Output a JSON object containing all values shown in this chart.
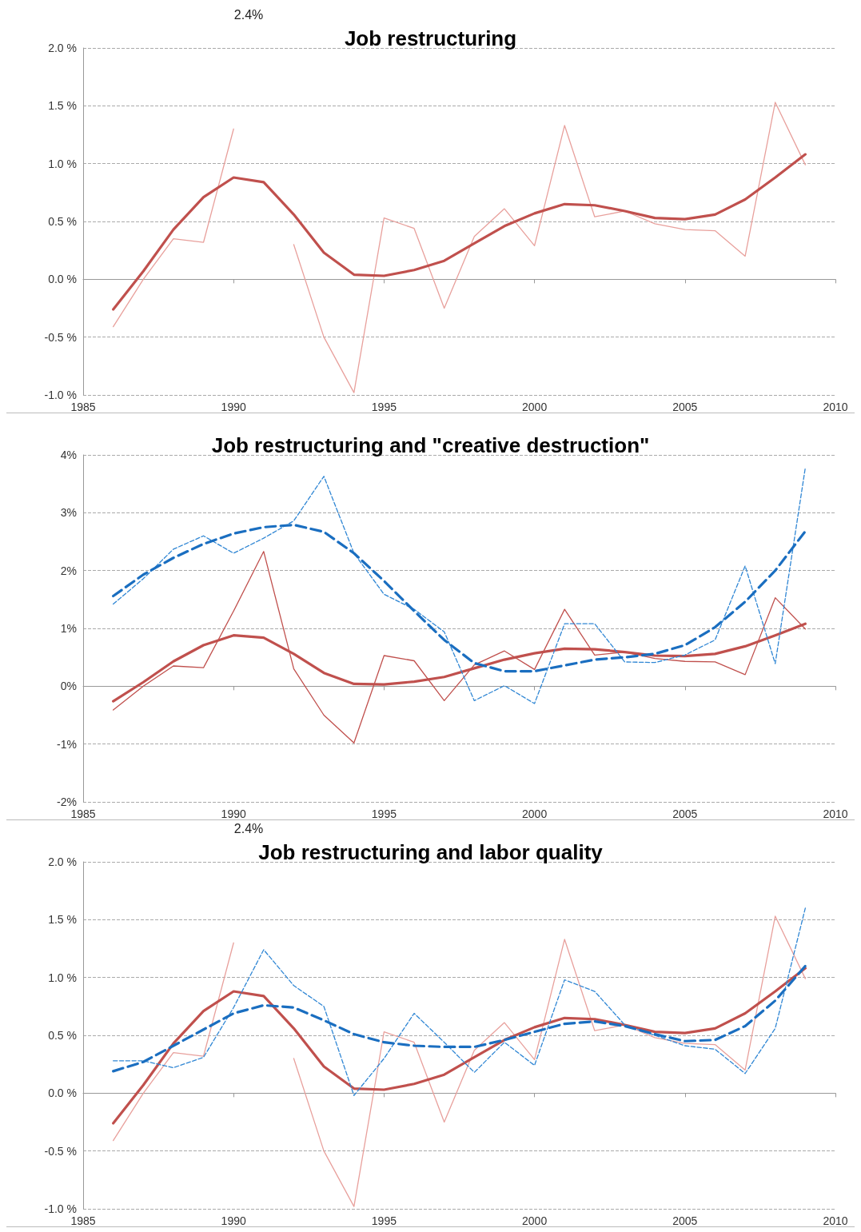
{
  "chart_data": [
    {
      "type": "line",
      "title": "Job restructuring",
      "x": [
        1986,
        1987,
        1988,
        1989,
        1990,
        1991,
        1992,
        1993,
        1994,
        1995,
        1996,
        1997,
        1998,
        1999,
        2000,
        2001,
        2002,
        2003,
        2004,
        2005,
        2006,
        2007,
        2008,
        2009
      ],
      "xlim": [
        1985,
        2010
      ],
      "xticks": [
        1985,
        1990,
        1995,
        2000,
        2005,
        2010
      ],
      "ylim": [
        -1,
        2
      ],
      "yticks": [
        {
          "value": -1,
          "label": "-1.0 %"
        },
        {
          "value": -0.5,
          "label": "-0.5 %"
        },
        {
          "value": 0,
          "label": "0.0 %"
        },
        {
          "value": 0.5,
          "label": "0.5 %"
        },
        {
          "value": 1,
          "label": "1.0 %"
        },
        {
          "value": 1.5,
          "label": "1.5 %"
        },
        {
          "value": 2,
          "label": "2.0 %"
        }
      ],
      "grid": "y",
      "marker": "none",
      "annotations": [
        "2.4%"
      ],
      "series": [
        {
          "color": "#e8a09c",
          "line_style": "solid",
          "values": [
            -0.41,
            0.0,
            0.35,
            0.32,
            1.3,
            null,
            0.3,
            -0.5,
            -0.98,
            0.53,
            0.44,
            -0.25,
            0.37,
            0.61,
            0.29,
            1.33,
            0.54,
            0.59,
            0.48,
            0.43,
            0.42,
            0.2,
            1.53,
            0.99
          ]
        },
        {
          "color": "#c0504d",
          "line_style": "solid",
          "values": [
            -0.26,
            0.07,
            0.43,
            0.71,
            0.88,
            0.84,
            0.56,
            0.23,
            0.04,
            0.03,
            0.08,
            0.16,
            0.31,
            0.46,
            0.57,
            0.65,
            0.64,
            0.59,
            0.53,
            0.52,
            0.56,
            0.69,
            0.88,
            1.08
          ]
        }
      ]
    },
    {
      "type": "line",
      "title": "Job restructuring and \"creative destruction\"",
      "x": [
        1986,
        1987,
        1988,
        1989,
        1990,
        1991,
        1992,
        1993,
        1994,
        1995,
        1996,
        1997,
        1998,
        1999,
        2000,
        2001,
        2002,
        2003,
        2004,
        2005,
        2006,
        2007,
        2008,
        2009
      ],
      "xlim": [
        1985,
        2010
      ],
      "xticks": [
        1985,
        1990,
        1995,
        2000,
        2005,
        2010
      ],
      "ylim": [
        -2,
        4
      ],
      "yticks": [
        {
          "value": -2,
          "label": "-2%"
        },
        {
          "value": -1,
          "label": "-1%"
        },
        {
          "value": 0,
          "label": "0%"
        },
        {
          "value": 1,
          "label": "1%"
        },
        {
          "value": 2,
          "label": "2%"
        },
        {
          "value": 3,
          "label": "3%"
        },
        {
          "value": 4,
          "label": "4%"
        }
      ],
      "grid": "y",
      "marker": "none",
      "series": [
        {
          "color": "#c0504d",
          "line_style": "solid",
          "values": [
            -0.41,
            0.0,
            0.35,
            0.32,
            1.3,
            2.33,
            0.3,
            -0.5,
            -0.98,
            0.53,
            0.44,
            -0.25,
            0.37,
            0.61,
            0.29,
            1.33,
            0.54,
            0.59,
            0.48,
            0.43,
            0.42,
            0.2,
            1.53,
            0.99
          ]
        },
        {
          "color": "#c0504d",
          "line_style": "solid",
          "values": [
            -0.26,
            0.07,
            0.43,
            0.71,
            0.88,
            0.84,
            0.56,
            0.23,
            0.04,
            0.03,
            0.08,
            0.16,
            0.31,
            0.46,
            0.57,
            0.65,
            0.64,
            0.59,
            0.53,
            0.52,
            0.56,
            0.69,
            0.88,
            1.08
          ]
        },
        {
          "color": "#2f86d4",
          "line_style": "dashed",
          "values": [
            1.42,
            1.86,
            2.37,
            2.6,
            2.3,
            2.56,
            2.86,
            3.63,
            2.3,
            1.59,
            1.33,
            0.94,
            -0.25,
            0.01,
            -0.3,
            1.08,
            1.08,
            0.42,
            0.41,
            0.54,
            0.8,
            2.08,
            0.39,
            3.78
          ]
        },
        {
          "color": "#1a6ec0",
          "line_style": "dashed",
          "values": [
            1.56,
            1.93,
            2.22,
            2.46,
            2.64,
            2.75,
            2.79,
            2.67,
            2.3,
            1.82,
            1.3,
            0.8,
            0.4,
            0.26,
            0.26,
            0.36,
            0.46,
            0.5,
            0.56,
            0.71,
            1.02,
            1.46,
            2.0,
            2.68
          ]
        }
      ]
    },
    {
      "type": "line",
      "title": "Job restructuring and labor quality",
      "x": [
        1986,
        1987,
        1988,
        1989,
        1990,
        1991,
        1992,
        1993,
        1994,
        1995,
        1996,
        1997,
        1998,
        1999,
        2000,
        2001,
        2002,
        2003,
        2004,
        2005,
        2006,
        2007,
        2008,
        2009
      ],
      "xlim": [
        1985,
        2010
      ],
      "xticks": [
        1985,
        1990,
        1995,
        2000,
        2005,
        2010
      ],
      "ylim": [
        -1,
        2
      ],
      "yticks": [
        {
          "value": -1,
          "label": "-1.0 %"
        },
        {
          "value": -0.5,
          "label": "-0.5 %"
        },
        {
          "value": 0,
          "label": "0.0 %"
        },
        {
          "value": 0.5,
          "label": "0.5 %"
        },
        {
          "value": 1,
          "label": "1.0 %"
        },
        {
          "value": 1.5,
          "label": "1.5 %"
        },
        {
          "value": 2,
          "label": "2.0 %"
        }
      ],
      "grid": "y",
      "marker": "none",
      "annotations": [
        "2.4%"
      ],
      "series": [
        {
          "color": "#e8a09c",
          "line_style": "solid",
          "values": [
            -0.41,
            0.0,
            0.35,
            0.32,
            1.3,
            null,
            0.3,
            -0.5,
            -0.98,
            0.53,
            0.44,
            -0.25,
            0.37,
            0.61,
            0.29,
            1.33,
            0.54,
            0.59,
            0.48,
            0.43,
            0.42,
            0.2,
            1.53,
            0.99
          ]
        },
        {
          "color": "#c0504d",
          "line_style": "solid",
          "values": [
            -0.26,
            0.07,
            0.43,
            0.71,
            0.88,
            0.84,
            0.56,
            0.23,
            0.04,
            0.03,
            0.08,
            0.16,
            0.31,
            0.46,
            0.57,
            0.65,
            0.64,
            0.59,
            0.53,
            0.52,
            0.56,
            0.69,
            0.88,
            1.08
          ]
        },
        {
          "color": "#2f86d4",
          "line_style": "dashed",
          "values": [
            0.28,
            0.28,
            0.22,
            0.31,
            0.74,
            1.24,
            0.93,
            0.75,
            -0.02,
            0.3,
            0.69,
            0.44,
            0.18,
            0.44,
            0.24,
            0.98,
            0.88,
            0.59,
            0.5,
            0.41,
            0.38,
            0.17,
            0.56,
            1.6
          ]
        },
        {
          "color": "#1a6ec0",
          "line_style": "dashed",
          "values": [
            0.19,
            0.27,
            0.41,
            0.55,
            0.69,
            0.76,
            0.74,
            0.63,
            0.51,
            0.44,
            0.41,
            0.4,
            0.4,
            0.46,
            0.53,
            0.6,
            0.62,
            0.58,
            0.51,
            0.45,
            0.46,
            0.58,
            0.8,
            1.1
          ]
        }
      ]
    }
  ]
}
